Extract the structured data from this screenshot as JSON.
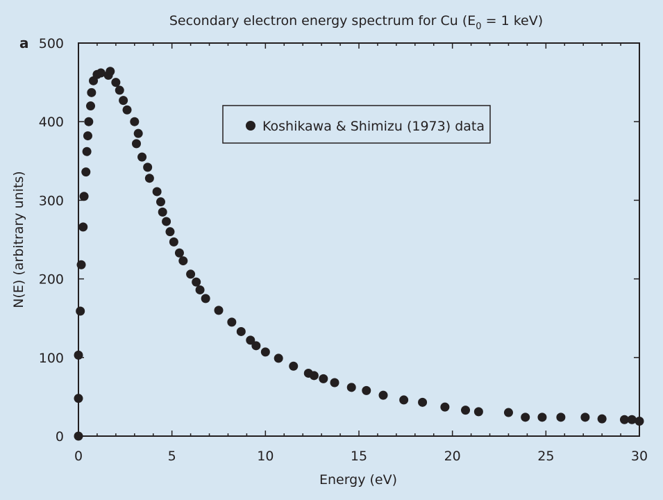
{
  "chart_data": {
    "type": "scatter",
    "panel_label": "a",
    "title_prefix": "Secondary electron energy spectrum for Cu (E",
    "title_subscript": "0",
    "title_suffix": " = 1 keV)",
    "xlabel": "Energy (eV)",
    "ylabel": "N(E) (arbitrary units)",
    "xlim": [
      0,
      30
    ],
    "ylim": [
      0,
      500
    ],
    "x_ticks": [
      0,
      5,
      10,
      15,
      20,
      25,
      30
    ],
    "y_ticks": [
      0,
      100,
      200,
      300,
      400,
      500
    ],
    "grid": false,
    "legend_position": "top-center",
    "marker_color": "#231f20",
    "series": [
      {
        "name": "Koshikawa & Shimizu (1973) data",
        "x": [
          0,
          0,
          0,
          0.1,
          0.15,
          0.25,
          0.3,
          0.4,
          0.45,
          0.5,
          0.55,
          0.65,
          0.7,
          0.8,
          1.0,
          1.2,
          1.6,
          1.7,
          2.0,
          2.2,
          2.4,
          2.6,
          3.0,
          3.1,
          3.2,
          3.4,
          3.7,
          3.8,
          4.2,
          4.4,
          4.5,
          4.7,
          4.9,
          5.1,
          5.4,
          5.6,
          6.0,
          6.3,
          6.5,
          6.8,
          7.5,
          8.2,
          8.7,
          9.2,
          9.5,
          10.0,
          10.7,
          11.5,
          12.3,
          12.6,
          13.1,
          13.7,
          14.6,
          15.4,
          16.3,
          17.4,
          18.4,
          19.6,
          20.7,
          21.4,
          23.0,
          23.9,
          24.8,
          25.8,
          27.1,
          28.0,
          29.2,
          29.6,
          30.0
        ],
        "y": [
          0,
          48,
          103,
          159,
          218,
          266,
          305,
          336,
          362,
          382,
          400,
          420,
          437,
          452,
          460,
          462,
          459,
          464,
          450,
          440,
          427,
          415,
          400,
          372,
          385,
          355,
          342,
          328,
          311,
          298,
          285,
          273,
          260,
          247,
          233,
          223,
          206,
          196,
          186,
          175,
          160,
          145,
          133,
          122,
          115,
          107,
          99,
          89,
          80,
          77,
          73,
          68,
          62,
          58,
          52,
          46,
          43,
          37,
          33,
          31,
          30,
          24,
          24,
          24,
          24,
          22,
          21,
          21,
          19
        ]
      }
    ]
  }
}
